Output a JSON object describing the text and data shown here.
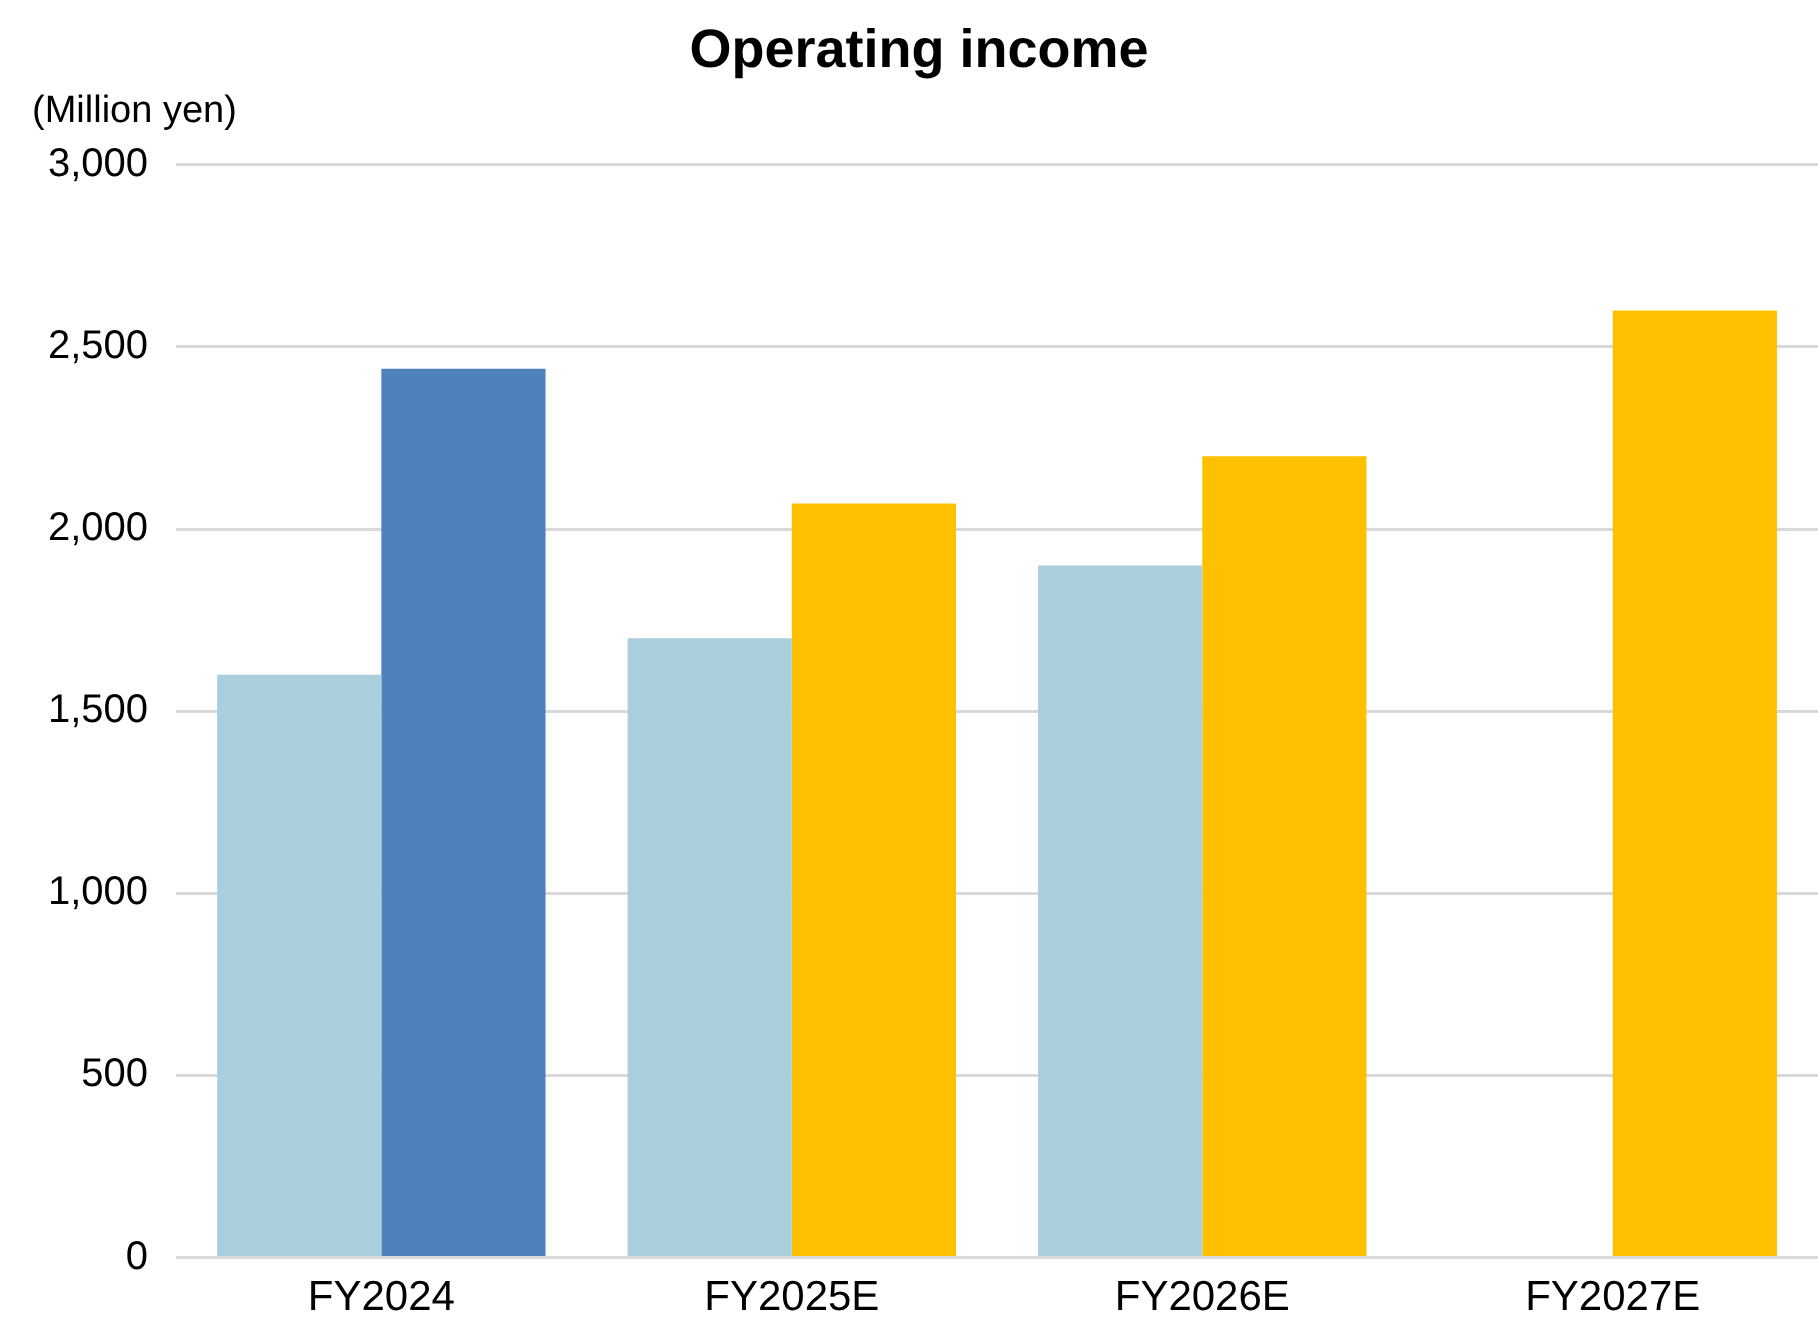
{
  "chart_data": {
    "type": "bar",
    "title": "Operating income",
    "ylabel": "(Million yen)",
    "categories": [
      "FY2024",
      "FY2025E",
      "FY2026E",
      "FY2027E"
    ],
    "series": [
      {
        "colors": [
          "#a9cfdd",
          "#a9cfdd",
          "#a9cfdd",
          "#a9cfdd"
        ],
        "values": [
          1600,
          1700,
          1900,
          null
        ]
      },
      {
        "colors": [
          "#4f81bd",
          "#ffc000",
          "#ffc000",
          "#ffc000"
        ],
        "values": [
          2440,
          2070,
          2200,
          2600
        ]
      }
    ],
    "ylim": [
      0,
      3000
    ],
    "yticks": [
      0,
      500,
      {
        "value": 1000,
        "label": "1,000"
      },
      {
        "value": 1500,
        "label": "1,500"
      },
      {
        "value": 2000,
        "label": "2,000"
      },
      {
        "value": 2500,
        "label": "2,500"
      },
      {
        "value": 3000,
        "label": "3,000"
      }
    ],
    "grid": "y"
  }
}
